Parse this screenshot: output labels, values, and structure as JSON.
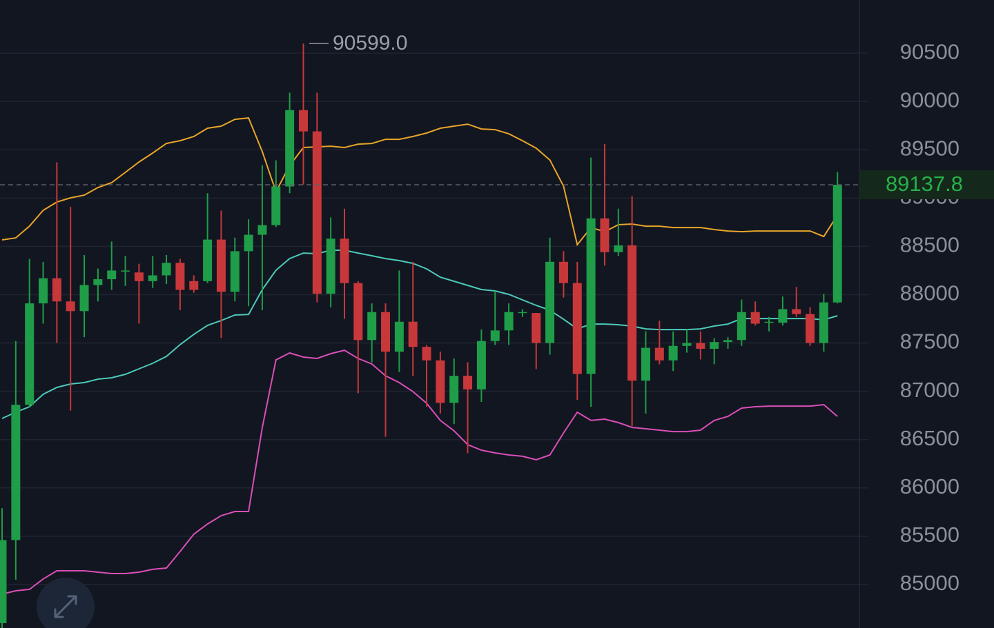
{
  "chart_data": {
    "type": "candlestick",
    "ylim": [
      84550,
      91050
    ],
    "yticks": [
      85000,
      85500,
      86000,
      86500,
      87000,
      87500,
      88000,
      88500,
      89000,
      89500,
      90000,
      90500
    ],
    "grid": true,
    "up_color": "#1f9d48",
    "down_color": "#c8383b",
    "open": [
      84600,
      85460,
      86860,
      87910,
      88170,
      87930,
      87830,
      88100,
      88160,
      88240,
      88230,
      88140,
      88200,
      88330,
      88140,
      88140,
      88570,
      88030,
      88450,
      88620,
      88720,
      89120,
      89910,
      89690,
      88010,
      88580,
      88120,
      87530,
      87820,
      87410,
      87720,
      87460,
      87320,
      86880,
      87160,
      87020,
      87520,
      87630,
      87810,
      87810,
      87500,
      88340,
      88120,
      87180,
      88790,
      88440,
      88510,
      87110,
      87450,
      87320,
      87470,
      87500,
      87440,
      87510,
      87530,
      87820,
      87710,
      87710,
      87850,
      87800,
      87500,
      87920
    ],
    "high": [
      85790,
      87520,
      88370,
      88340,
      89370,
      88910,
      88410,
      88270,
      88550,
      88400,
      88320,
      88400,
      88410,
      88370,
      88200,
      89050,
      88870,
      88590,
      88780,
      89340,
      89390,
      90090,
      90599,
      90090,
      88800,
      88890,
      88140,
      87910,
      87910,
      88250,
      88340,
      87480,
      87410,
      87340,
      87300,
      87640,
      88040,
      87910,
      87850,
      87810,
      88590,
      88450,
      88340,
      89420,
      89560,
      88890,
      89020,
      87620,
      87730,
      87620,
      87640,
      87620,
      87550,
      87560,
      87950,
      87930,
      87770,
      87980,
      88080,
      87870,
      88010,
      89270
    ],
    "low": [
      84550,
      85050,
      86830,
      87700,
      87500,
      86800,
      87560,
      87930,
      88050,
      88090,
      87700,
      88070,
      88110,
      87840,
      88020,
      88120,
      87550,
      87930,
      87880,
      87840,
      88700,
      89050,
      89140,
      87920,
      87870,
      87750,
      86980,
      87300,
      86530,
      87200,
      87160,
      86840,
      86770,
      86660,
      86360,
      86890,
      87480,
      87480,
      87770,
      87230,
      87380,
      87970,
      86910,
      86840,
      88300,
      88400,
      86640,
      86770,
      87280,
      87210,
      87400,
      87330,
      87280,
      87440,
      87470,
      87680,
      87620,
      87680,
      87770,
      87470,
      87410,
      87910
    ],
    "close": [
      85460,
      86860,
      87910,
      88170,
      87930,
      87830,
      88100,
      88160,
      88250,
      88250,
      88140,
      88200,
      88330,
      88050,
      88050,
      88570,
      88030,
      88450,
      88620,
      88720,
      89120,
      89910,
      89690,
      88010,
      88580,
      88120,
      87530,
      87820,
      87410,
      87720,
      87460,
      87320,
      86880,
      87160,
      87020,
      87520,
      87630,
      87820,
      87820,
      87500,
      88340,
      88120,
      87180,
      88790,
      88440,
      88510,
      87110,
      87450,
      87320,
      87470,
      87500,
      87440,
      87510,
      87530,
      87820,
      87700,
      87720,
      87850,
      87800,
      87500,
      87920,
      89137.8
    ],
    "bands": {
      "upper": {
        "color": "#e9a52a",
        "values": [
          88567,
          88588,
          88710,
          88873,
          88959,
          89002,
          89030,
          89109,
          89159,
          89266,
          89373,
          89466,
          89565,
          89594,
          89637,
          89723,
          89744,
          89815,
          89829,
          89480,
          89066,
          89337,
          89523,
          89530,
          89537,
          89523,
          89558,
          89565,
          89608,
          89608,
          89637,
          89673,
          89723,
          89744,
          89765,
          89715,
          89708,
          89665,
          89594,
          89516,
          89394,
          89123,
          88517,
          88695,
          88652,
          88724,
          88731,
          88709,
          88709,
          88695,
          88695,
          88695,
          88674,
          88659,
          88652,
          88659,
          88659,
          88659,
          88659,
          88659,
          88602,
          88823
        ]
      },
      "middle": {
        "color": "#4ccabb",
        "values": [
          86719,
          86783,
          86840,
          86969,
          87040,
          87076,
          87090,
          87126,
          87140,
          87176,
          87233,
          87290,
          87361,
          87483,
          87589,
          87682,
          87732,
          87789,
          87796,
          88053,
          88253,
          88374,
          88431,
          88424,
          88460,
          88460,
          88431,
          88403,
          88374,
          88353,
          88324,
          88267,
          88181,
          88139,
          88096,
          88053,
          88039,
          88003,
          87946,
          87889,
          87839,
          87746,
          87646,
          87696,
          87696,
          87689,
          87675,
          87646,
          87639,
          87639,
          87639,
          87646,
          87675,
          87696,
          87753,
          87753,
          87753,
          87753,
          87753,
          87753,
          87739,
          87782
        ]
      },
      "lower": {
        "color": "#d94fb8",
        "values": [
          84900,
          84935,
          84950,
          85057,
          85142,
          85142,
          85142,
          85128,
          85114,
          85114,
          85128,
          85157,
          85171,
          85342,
          85521,
          85627,
          85713,
          85756,
          85756,
          86626,
          87325,
          87397,
          87354,
          87340,
          87390,
          87425,
          87340,
          87283,
          87161,
          87090,
          86997,
          86876,
          86698,
          86591,
          86448,
          86391,
          86362,
          86341,
          86327,
          86291,
          86341,
          86569,
          86783,
          86698,
          86712,
          86676,
          86626,
          86612,
          86598,
          86583,
          86583,
          86598,
          86698,
          86740,
          86826,
          86840,
          86847,
          86847,
          86847,
          86847,
          86862,
          86740
        ]
      }
    },
    "high_label": {
      "value": 90599,
      "label": "90599.0"
    },
    "last_price": 89137.8
  }
}
